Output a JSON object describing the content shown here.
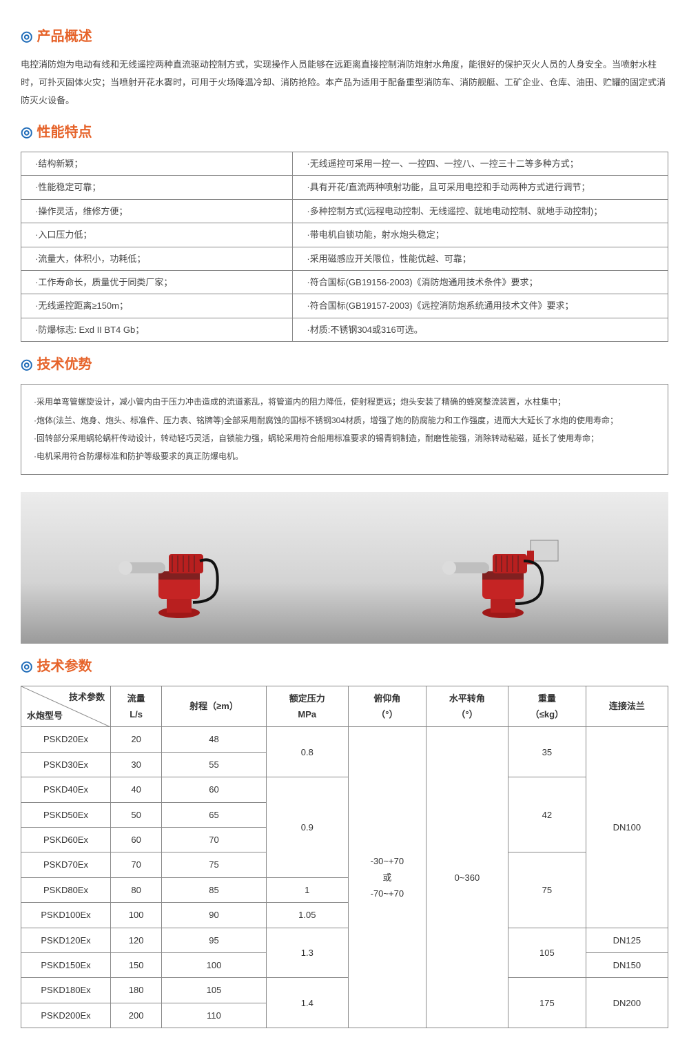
{
  "accent_blue": "#1e6bb8",
  "accent_orange": "#e6632a",
  "sections": {
    "overview": {
      "title": "产品概述",
      "body": "电控消防炮为电动有线和无线遥控两种直流驱动控制方式，实现操作人员能够在远距离直接控制消防炮射水角度，能很好的保护灭火人员的人身安全。当喷射水柱时，可扑灭固体火灾；当喷射开花水雾时，可用于火场降温冷却、消防抢险。本产品为适用于配备重型消防车、消防舰艇、工矿企业、仓库、油田、贮罐的固定式消防灭火设备。"
    },
    "features": {
      "title": "性能特点",
      "rows": [
        [
          "·结构新颖；",
          "·无线遥控可采用一控一、一控四、一控八、一控三十二等多种方式；"
        ],
        [
          "·性能稳定可靠；",
          "·具有开花/直流两种喷射功能，且可采用电控和手动两种方式进行调节；"
        ],
        [
          "·操作灵活，维修方便；",
          "·多种控制方式(远程电动控制、无线遥控、就地电动控制、就地手动控制)；"
        ],
        [
          "·入口压力低；",
          "·带电机自锁功能，射水炮头稳定；"
        ],
        [
          "·流量大，体积小，功耗低；",
          "·采用磁感应开关限位，性能优越、可靠；"
        ],
        [
          "·工作寿命长，质量优于同类厂家；",
          "·符合国标(GB19156-2003)《消防炮通用技术条件》要求；"
        ],
        [
          "·无线遥控距离≥150m；",
          "·符合国标(GB19157-2003)《远控消防炮系统通用技术文件》要求；"
        ],
        [
          "·防爆标志:  Exd II BT4 Gb；",
          "·材质:不锈钢304或316可选。"
        ]
      ]
    },
    "advantages": {
      "title": "技术优势",
      "items": [
        "·采用单弯管螺旋设计，减小管内由于压力冲击造成的流道紊乱，将管道内的阻力降低，使射程更远；炮头安装了精确的蜂窝整流装置，水柱集中；",
        "·炮体(法兰、炮身、炮头、标准件、压力表、铭牌等)全部采用耐腐蚀的国标不锈钢304材质，增强了炮的防腐能力和工作强度，进而大大延长了水炮的使用寿命；",
        "·回转部分采用蜗轮蜗杆传动设计，转动轻巧灵活，自锁能力强，蜗轮采用符合船用标准要求的锡青铜制造，耐磨性能强，消除转动粘磁，延长了使用寿命；",
        "·电机采用符合防爆标准和防护等级要求的真正防爆电机。"
      ]
    },
    "specs": {
      "title": "技术参数",
      "colors": {
        "border": "#888888",
        "header_bg": "#ffffff",
        "text": "#333333"
      },
      "header": {
        "diag_top": "技术参数",
        "diag_bottom": "水炮型号",
        "cols": [
          "流量\nL/s",
          "射程（≥m）",
          "额定压力\nMPa",
          "俯仰角\n（°）",
          "水平转角\n（°）",
          "重量\n（≤kg）",
          "连接法兰"
        ]
      },
      "rows": [
        {
          "model": "PSKD20Ex",
          "flow": "20",
          "range": "48"
        },
        {
          "model": "PSKD30Ex",
          "flow": "30",
          "range": "55"
        },
        {
          "model": "PSKD40Ex",
          "flow": "40",
          "range": "60"
        },
        {
          "model": "PSKD50Ex",
          "flow": "50",
          "range": "65"
        },
        {
          "model": "PSKD60Ex",
          "flow": "60",
          "range": "70"
        },
        {
          "model": "PSKD70Ex",
          "flow": "70",
          "range": "75"
        },
        {
          "model": "PSKD80Ex",
          "flow": "80",
          "range": "85"
        },
        {
          "model": "PSKD100Ex",
          "flow": "100",
          "range": "90"
        },
        {
          "model": "PSKD120Ex",
          "flow": "120",
          "range": "95"
        },
        {
          "model": "PSKD150Ex",
          "flow": "150",
          "range": "100"
        },
        {
          "model": "PSKD180Ex",
          "flow": "180",
          "range": "105"
        },
        {
          "model": "PSKD200Ex",
          "flow": "200",
          "range": "110"
        }
      ],
      "pressure_groups": [
        {
          "rows": 2,
          "value": "0.8"
        },
        {
          "rows": 4,
          "value": "0.9"
        },
        {
          "rows": 1,
          "value": "1"
        },
        {
          "rows": 1,
          "value": "1.05"
        },
        {
          "rows": 2,
          "value": "1.3"
        },
        {
          "rows": 2,
          "value": "1.4"
        }
      ],
      "pitch": "-30~+70\n或\n-70~+70",
      "yaw": "0~360",
      "weight_groups": [
        {
          "rows": 2,
          "value": "35"
        },
        {
          "rows": 3,
          "value": "42"
        },
        {
          "rows": 3,
          "value": "75"
        },
        {
          "rows": 2,
          "value": "105"
        },
        {
          "rows": 2,
          "value": "175"
        }
      ],
      "flange_groups": [
        {
          "rows": 8,
          "value": "DN100"
        },
        {
          "rows": 1,
          "value": "DN125"
        },
        {
          "rows": 1,
          "value": "DN150"
        },
        {
          "rows": 2,
          "value": "DN200"
        }
      ]
    }
  }
}
